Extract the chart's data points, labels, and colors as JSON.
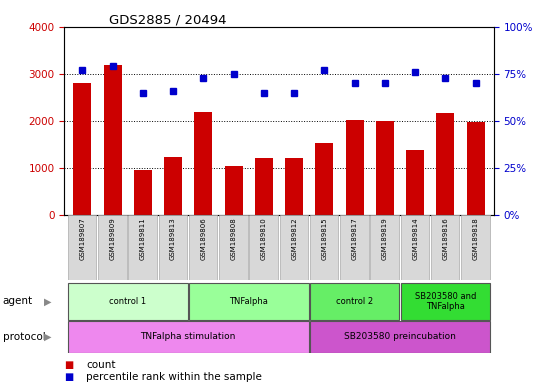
{
  "title": "GDS2885 / 20494",
  "samples": [
    "GSM189807",
    "GSM189809",
    "GSM189811",
    "GSM189813",
    "GSM189806",
    "GSM189808",
    "GSM189810",
    "GSM189812",
    "GSM189815",
    "GSM189817",
    "GSM189819",
    "GSM189814",
    "GSM189816",
    "GSM189818"
  ],
  "counts": [
    2800,
    3200,
    950,
    1230,
    2180,
    1040,
    1220,
    1210,
    1530,
    2020,
    2000,
    1380,
    2170,
    1980
  ],
  "percentiles": [
    77,
    79,
    65,
    66,
    73,
    75,
    65,
    65,
    77,
    70,
    70,
    76,
    73,
    70
  ],
  "ylim_left": [
    0,
    4000
  ],
  "ylim_right": [
    0,
    100
  ],
  "yticks_left": [
    0,
    1000,
    2000,
    3000,
    4000
  ],
  "yticks_right": [
    0,
    25,
    50,
    75,
    100
  ],
  "bar_color": "#cc0000",
  "dot_color": "#0000cc",
  "grid_color": "#000000",
  "agent_groups": [
    {
      "label": "control 1",
      "start": 0,
      "end": 3,
      "color": "#ccffcc"
    },
    {
      "label": "TNFalpha",
      "start": 4,
      "end": 7,
      "color": "#99ff99"
    },
    {
      "label": "control 2",
      "start": 8,
      "end": 10,
      "color": "#66ee66"
    },
    {
      "label": "SB203580 and\nTNFalpha",
      "start": 11,
      "end": 13,
      "color": "#33dd33"
    }
  ],
  "protocol_groups": [
    {
      "label": "TNFalpha stimulation",
      "start": 0,
      "end": 7,
      "color": "#ee88ee"
    },
    {
      "label": "SB203580 preincubation",
      "start": 8,
      "end": 13,
      "color": "#cc55cc"
    }
  ],
  "bg_color": "#ffffff",
  "bar_color_legend": "#cc0000",
  "dot_color_legend": "#0000cc",
  "ylabel_left_color": "#cc0000",
  "ylabel_right_color": "#0000cc",
  "sample_box_color": "#d8d8d8",
  "sample_box_edge": "#aaaaaa"
}
